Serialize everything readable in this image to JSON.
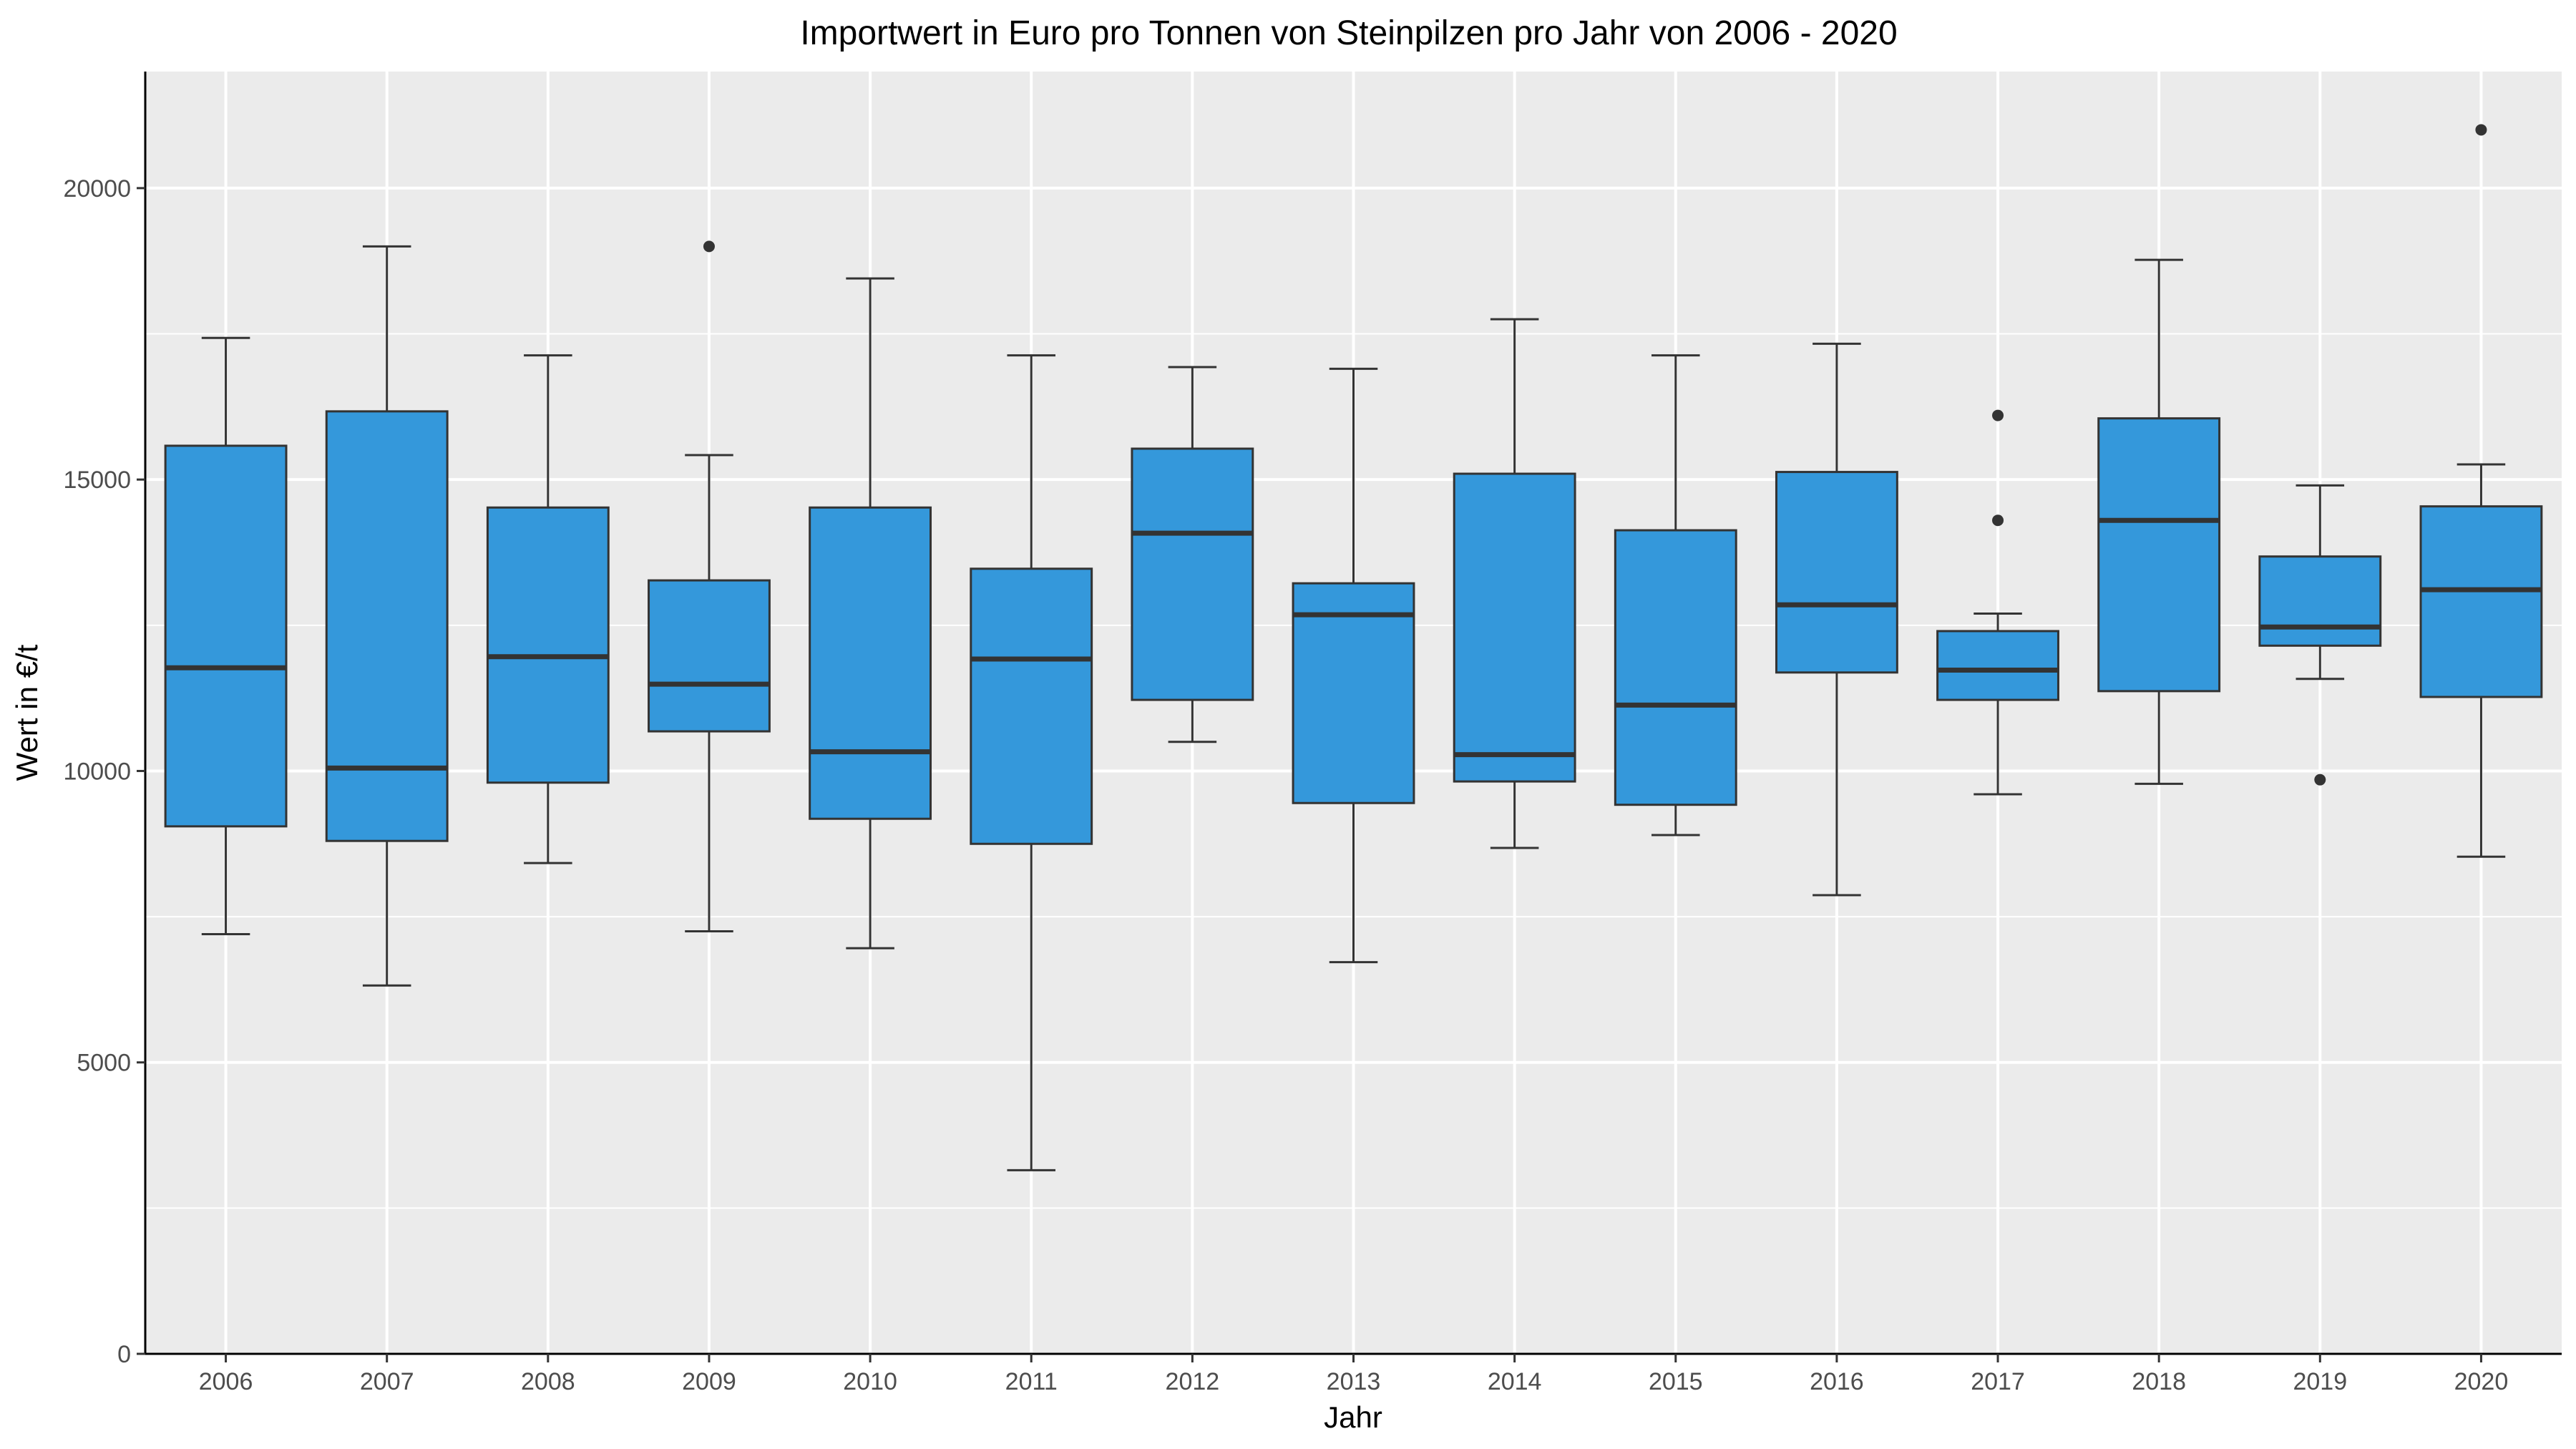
{
  "chart_data": {
    "type": "boxplot",
    "title": "Importwert in Euro pro Tonnen von Steinpilzen pro Jahr von 2006 - 2020",
    "xlabel": "Jahr",
    "ylabel": "Wert in €/t",
    "ylim": [
      0,
      22000
    ],
    "yticks": [
      0,
      5000,
      10000,
      15000,
      20000
    ],
    "grid": true,
    "categories": [
      "2006",
      "2007",
      "2008",
      "2009",
      "2010",
      "2011",
      "2012",
      "2013",
      "2014",
      "2015",
      "2016",
      "2017",
      "2018",
      "2019",
      "2020"
    ],
    "boxes": [
      {
        "category": "2006",
        "whisker_low": 7200,
        "q1": 9050,
        "median": 11770,
        "q3": 15580,
        "whisker_high": 17430,
        "outliers": []
      },
      {
        "category": "2007",
        "whisker_low": 6320,
        "q1": 8800,
        "median": 10050,
        "q3": 16170,
        "whisker_high": 19000,
        "outliers": []
      },
      {
        "category": "2008",
        "whisker_low": 8420,
        "q1": 9800,
        "median": 11960,
        "q3": 14520,
        "whisker_high": 17130,
        "outliers": []
      },
      {
        "category": "2009",
        "whisker_low": 7250,
        "q1": 10680,
        "median": 11490,
        "q3": 13270,
        "whisker_high": 15420,
        "outliers": [
          19000
        ]
      },
      {
        "category": "2010",
        "whisker_low": 6960,
        "q1": 9180,
        "median": 10330,
        "q3": 14520,
        "whisker_high": 18450,
        "outliers": []
      },
      {
        "category": "2011",
        "whisker_low": 3150,
        "q1": 8750,
        "median": 11920,
        "q3": 13470,
        "whisker_high": 17130,
        "outliers": []
      },
      {
        "category": "2012",
        "whisker_low": 10500,
        "q1": 11220,
        "median": 14080,
        "q3": 15530,
        "whisker_high": 16930,
        "outliers": []
      },
      {
        "category": "2013",
        "whisker_low": 6720,
        "q1": 9450,
        "median": 12680,
        "q3": 13220,
        "whisker_high": 16900,
        "outliers": []
      },
      {
        "category": "2014",
        "whisker_low": 8680,
        "q1": 9820,
        "median": 10280,
        "q3": 15100,
        "whisker_high": 17750,
        "outliers": []
      },
      {
        "category": "2015",
        "whisker_low": 8900,
        "q1": 9420,
        "median": 11130,
        "q3": 14130,
        "whisker_high": 17130,
        "outliers": []
      },
      {
        "category": "2016",
        "whisker_low": 7870,
        "q1": 11690,
        "median": 12850,
        "q3": 15130,
        "whisker_high": 17330,
        "outliers": []
      },
      {
        "category": "2017",
        "whisker_low": 9600,
        "q1": 11220,
        "median": 11730,
        "q3": 12400,
        "whisker_high": 12700,
        "outliers": [
          14300,
          16100
        ]
      },
      {
        "category": "2018",
        "whisker_low": 9780,
        "q1": 11370,
        "median": 14300,
        "q3": 16050,
        "whisker_high": 18770,
        "outliers": []
      },
      {
        "category": "2019",
        "whisker_low": 11580,
        "q1": 12150,
        "median": 12470,
        "q3": 13680,
        "whisker_high": 14900,
        "outliers": [
          9850
        ]
      },
      {
        "category": "2020",
        "whisker_low": 8530,
        "q1": 11270,
        "median": 13110,
        "q3": 14540,
        "whisker_high": 15260,
        "outliers": [
          21000
        ]
      }
    ],
    "colors": {
      "box_fill": "#3498DB",
      "box_stroke": "#333333",
      "median": "#333333",
      "panel_background": "#EBEBEB",
      "grid": "#FFFFFF",
      "axis": "#000000"
    }
  }
}
